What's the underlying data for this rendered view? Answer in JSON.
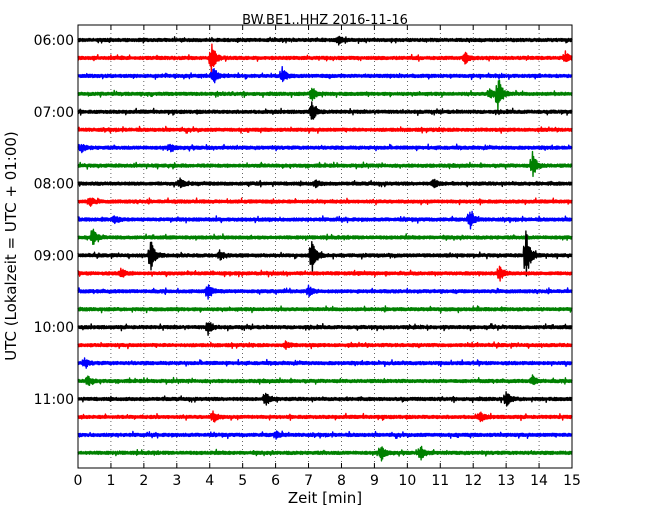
{
  "chart_data": {
    "type": "line",
    "title": "BW.BE1..HHZ 2016-11-16",
    "xlabel": "Zeit  [min]",
    "ylabel": "UTC (Lokalzeit = UTC + 01:00)",
    "xlim": [
      0,
      15
    ],
    "x_ticks": [
      "0",
      "1",
      "2",
      "3",
      "4",
      "5",
      "6",
      "7",
      "8",
      "9",
      "10",
      "11",
      "12",
      "13",
      "14",
      "15"
    ],
    "y_tick_labels": [
      "06:00",
      "07:00",
      "08:00",
      "09:00",
      "10:00",
      "11:00"
    ],
    "y_tick_rows": [
      0,
      4,
      8,
      12,
      16,
      20
    ],
    "grid": "vertical dotted",
    "trace_colors": [
      "#000000",
      "#ff0000",
      "#0000ff",
      "#008000"
    ],
    "traces": [
      {
        "start": "06:00",
        "events": [
          [
            7.9,
            0.25
          ]
        ]
      },
      {
        "start": "06:15",
        "events": [
          [
            4.05,
            1.0
          ],
          [
            11.75,
            0.35
          ],
          [
            14.8,
            0.35
          ]
        ]
      },
      {
        "start": "06:30",
        "events": [
          [
            4.1,
            0.6
          ],
          [
            6.2,
            0.5
          ]
        ]
      },
      {
        "start": "06:45",
        "events": [
          [
            7.1,
            0.5
          ],
          [
            12.5,
            0.35
          ],
          [
            12.75,
            1.2
          ]
        ]
      },
      {
        "start": "07:00",
        "events": [
          [
            7.1,
            0.6
          ]
        ]
      },
      {
        "start": "07:15",
        "events": []
      },
      {
        "start": "07:30",
        "events": [
          [
            0.1,
            0.25
          ],
          [
            2.8,
            0.2
          ]
        ]
      },
      {
        "start": "07:45",
        "events": [
          [
            13.8,
            0.8
          ]
        ]
      },
      {
        "start": "08:00",
        "events": [
          [
            3.1,
            0.25
          ],
          [
            7.2,
            0.2
          ],
          [
            10.8,
            0.3
          ]
        ]
      },
      {
        "start": "08:15",
        "events": [
          [
            0.35,
            0.3
          ]
        ]
      },
      {
        "start": "08:30",
        "events": [
          [
            1.1,
            0.25
          ],
          [
            11.9,
            0.6
          ]
        ]
      },
      {
        "start": "08:45",
        "events": [
          [
            0.45,
            0.5
          ]
        ]
      },
      {
        "start": "09:00",
        "events": [
          [
            2.2,
            1.1
          ],
          [
            4.3,
            0.3
          ],
          [
            7.1,
            1.2
          ],
          [
            13.6,
            1.8
          ]
        ]
      },
      {
        "start": "09:15",
        "events": [
          [
            1.3,
            0.3
          ],
          [
            12.8,
            0.5
          ]
        ]
      },
      {
        "start": "09:30",
        "events": [
          [
            3.95,
            0.5
          ],
          [
            7.0,
            0.3
          ]
        ]
      },
      {
        "start": "09:45",
        "events": []
      },
      {
        "start": "10:00",
        "events": [
          [
            3.95,
            0.45
          ]
        ]
      },
      {
        "start": "10:15",
        "events": [
          [
            6.3,
            0.2
          ]
        ]
      },
      {
        "start": "10:30",
        "events": [
          [
            0.2,
            0.25
          ]
        ]
      },
      {
        "start": "10:45",
        "events": [
          [
            0.3,
            0.3
          ],
          [
            13.8,
            0.3
          ]
        ]
      },
      {
        "start": "11:00",
        "events": [
          [
            5.7,
            0.45
          ],
          [
            13.0,
            0.45
          ]
        ]
      },
      {
        "start": "11:15",
        "events": [
          [
            4.1,
            0.35
          ],
          [
            12.2,
            0.3
          ]
        ]
      },
      {
        "start": "11:30",
        "events": [
          [
            6.0,
            0.2
          ]
        ]
      },
      {
        "start": "11:45",
        "events": [
          [
            9.2,
            0.5
          ],
          [
            10.4,
            0.45
          ]
        ]
      }
    ]
  }
}
